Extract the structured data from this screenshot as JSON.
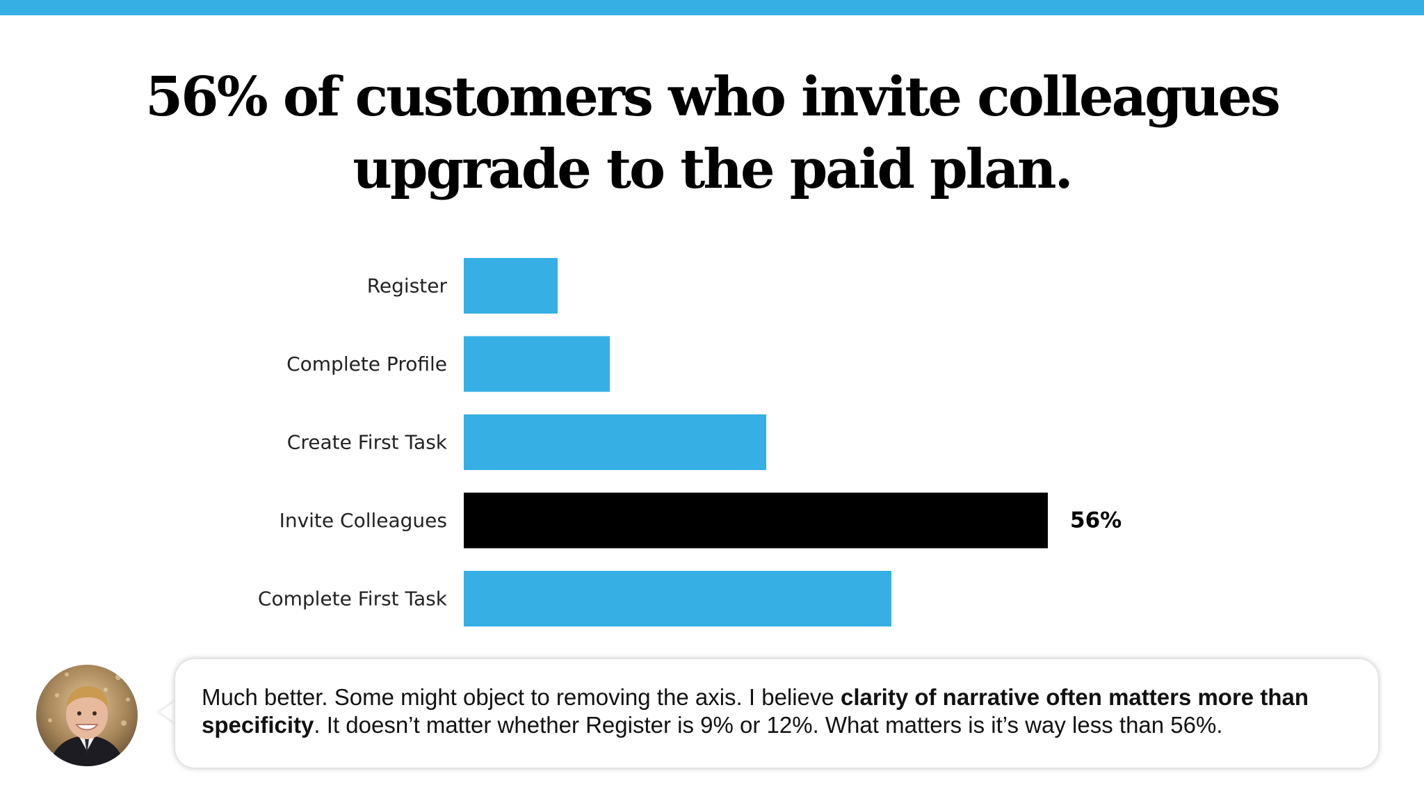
{
  "slide": {
    "headline_line1": "56% of customers who invite colleagues",
    "headline_line2": "upgrade to the paid plan."
  },
  "colors": {
    "accent": "#35afe4",
    "highlight": "#000000",
    "text": "#000000"
  },
  "chart_data": {
    "type": "bar",
    "orientation": "horizontal",
    "title": "",
    "xlabel": "",
    "ylabel": "",
    "categories": [
      "Register",
      "Complete Profile",
      "Create First Task",
      "Invite Colleagues",
      "Complete First Task"
    ],
    "values": [
      9,
      14,
      29,
      56,
      41
    ],
    "highlight_index": 3,
    "data_labels": [
      "",
      "",
      "",
      "56%",
      ""
    ],
    "xlim": [
      0,
      100
    ],
    "axis_visible": false,
    "grid": false
  },
  "caption": {
    "avatar_icon": "presenter-avatar-icon",
    "text_1": "Much better. Some might object to removing the axis. I believe ",
    "bold_1": "clarity of narrative often matters more than specificity",
    "text_2": ". It doesn’t matter whether Register is 9% or 12%. What matters is it’s way less than 56%."
  }
}
